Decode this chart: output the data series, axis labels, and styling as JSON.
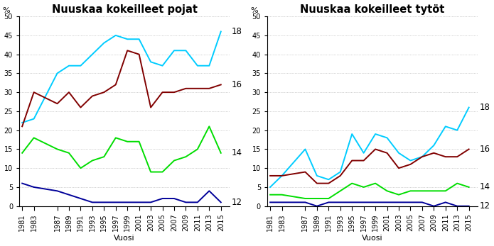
{
  "title_left": "Nuuskaa kokeilleet pojat",
  "title_right": "Nuuskaa kokeilleet tytöt",
  "xlabel": "Vuosi",
  "ylabel": "%",
  "years": [
    1981,
    1983,
    1987,
    1989,
    1991,
    1993,
    1995,
    1997,
    1999,
    2001,
    2003,
    2005,
    2007,
    2009,
    2011,
    2013,
    2015
  ],
  "boys": {
    "age18_cyan": [
      22,
      23,
      35,
      37,
      37,
      40,
      43,
      45,
      44,
      44,
      38,
      37,
      41,
      41,
      37,
      37,
      46
    ],
    "age16_darkred": [
      21,
      30,
      27,
      30,
      26,
      29,
      30,
      32,
      41,
      40,
      26,
      30,
      30,
      31,
      31,
      31,
      32
    ],
    "age14_green": [
      14,
      18,
      15,
      14,
      10,
      12,
      13,
      18,
      17,
      17,
      9,
      9,
      12,
      13,
      15,
      21,
      14
    ],
    "age12_navy": [
      6,
      5,
      4,
      3,
      2,
      1,
      1,
      1,
      1,
      1,
      1,
      2,
      2,
      1,
      1,
      4,
      1
    ]
  },
  "girls": {
    "age18_cyan": [
      5,
      8,
      15,
      8,
      7,
      9,
      19,
      14,
      19,
      18,
      14,
      12,
      13,
      16,
      21,
      20,
      26
    ],
    "age16_darkred": [
      8,
      8,
      9,
      6,
      6,
      8,
      12,
      12,
      15,
      14,
      10,
      11,
      13,
      14,
      13,
      13,
      15
    ],
    "age14_green": [
      3,
      3,
      2,
      2,
      2,
      4,
      6,
      5,
      6,
      4,
      3,
      4,
      4,
      4,
      4,
      6,
      5
    ],
    "age12_navy": [
      1,
      1,
      1,
      0,
      1,
      1,
      1,
      1,
      1,
      1,
      1,
      1,
      1,
      0,
      1,
      0,
      0
    ]
  },
  "colors": {
    "age18": "#00ccff",
    "age16": "#800000",
    "age14": "#00dd00",
    "age12": "#000099"
  },
  "age_labels_boys": [
    "18",
    "16",
    "14",
    "12"
  ],
  "age_labels_girls": [
    "18",
    "16",
    "14",
    "12"
  ],
  "age_ypos_boys": [
    46,
    32,
    14,
    1
  ],
  "age_ypos_girls": [
    26,
    15,
    5,
    0
  ],
  "ylim": [
    0,
    50
  ],
  "yticks": [
    0,
    5,
    10,
    15,
    20,
    25,
    30,
    35,
    40,
    45,
    50
  ],
  "background_color": "#ffffff",
  "title_fontsize": 10.5,
  "tick_fontsize": 7,
  "label_fontsize": 8,
  "age_label_fontsize": 8.5,
  "linewidth": 1.4
}
